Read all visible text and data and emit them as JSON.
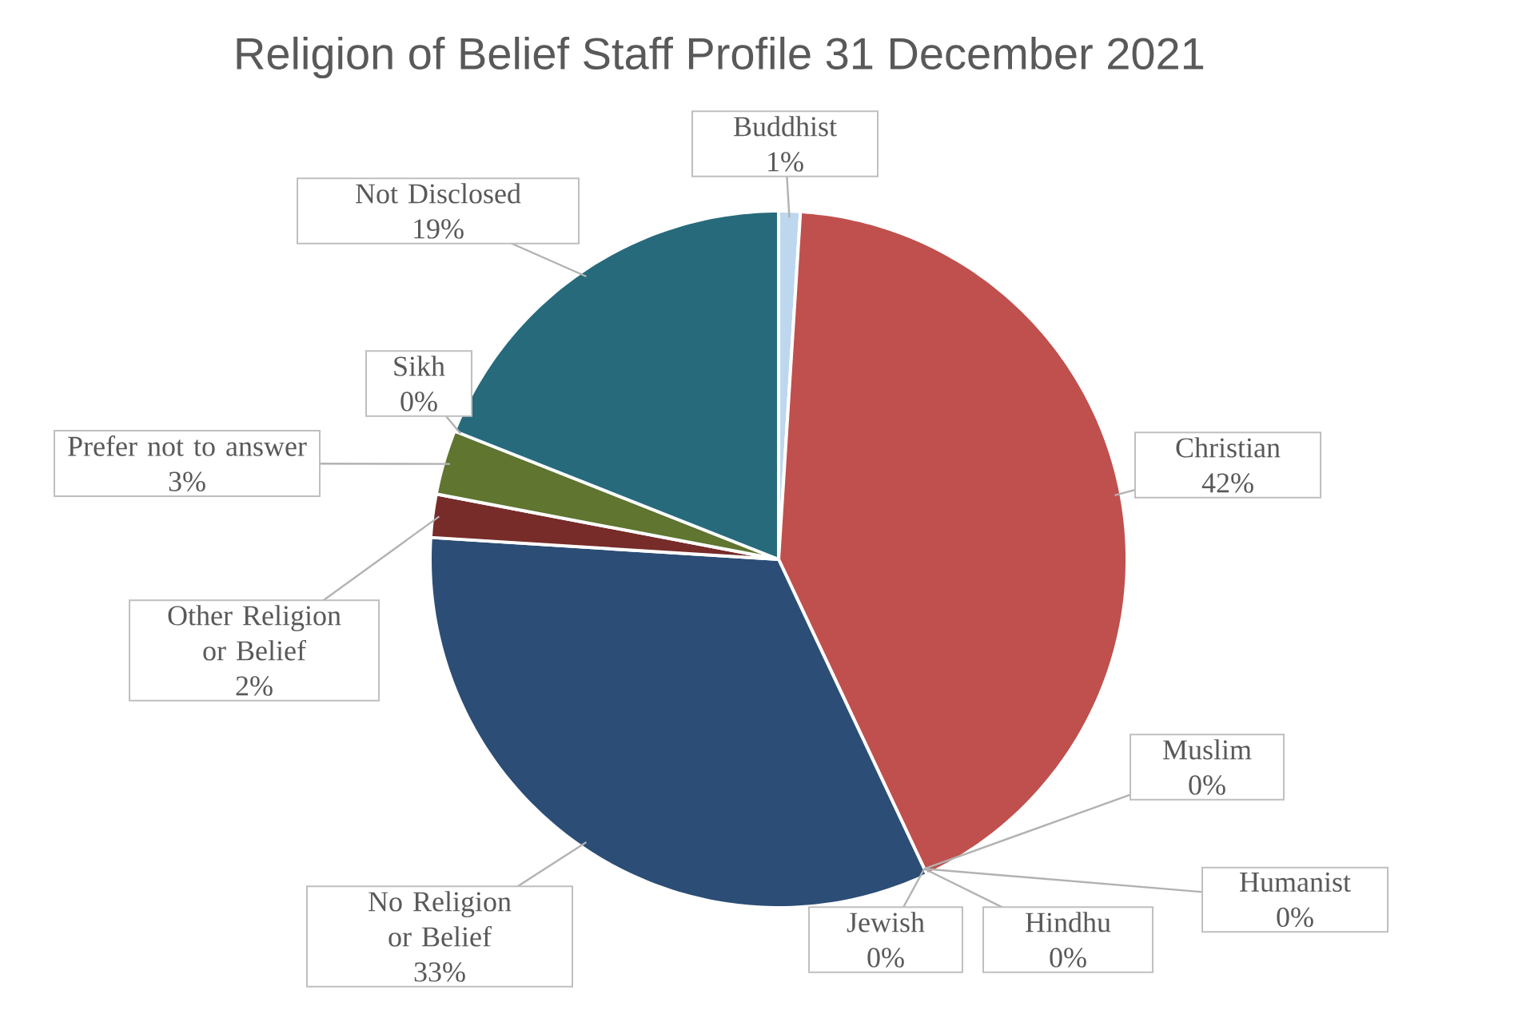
{
  "chart_data": {
    "type": "pie",
    "title": "Religion of Belief Staff Profile 31 December 2021",
    "categories": [
      "Buddhist",
      "Christian",
      "Muslim",
      "Humanist",
      "Hindhu",
      "Jewish",
      "No Religion or Belief",
      "Other Religion or Belief",
      "Prefer not to answer",
      "Sikh",
      "Not Disclosed"
    ],
    "values": [
      1,
      42,
      0,
      0,
      0,
      0,
      33,
      2,
      3,
      0,
      19
    ],
    "value_labels": [
      "1%",
      "42%",
      "0%",
      "0%",
      "0%",
      "0%",
      "33%",
      "2%",
      "3%",
      "0%",
      "19%"
    ],
    "colors": [
      "#bdd7ee",
      "#c0504d",
      "#9bbb59",
      "#8064a2",
      "#4bacc6",
      "#f79646",
      "#2c4d75",
      "#772c2a",
      "#5f7530",
      "#4d3b62",
      "#276a7c"
    ]
  }
}
